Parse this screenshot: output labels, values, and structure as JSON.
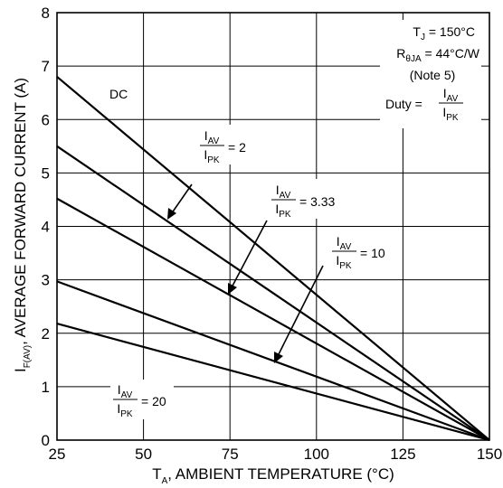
{
  "chart_data": {
    "type": "line",
    "x_range": [
      25,
      150
    ],
    "y_range": [
      0,
      8
    ],
    "x_ticks": [
      "25",
      "50",
      "75",
      "100",
      "125",
      "150"
    ],
    "y_ticks": [
      "0",
      "1",
      "2",
      "3",
      "4",
      "5",
      "6",
      "7",
      "8"
    ],
    "x_tick_values": [
      25,
      50,
      75,
      100,
      125,
      150
    ],
    "y_tick_values": [
      0,
      1,
      2,
      3,
      4,
      5,
      6,
      7,
      8
    ],
    "grid": true,
    "xlabel": {
      "main": "T",
      "sub": "A",
      "rest": ", AMBIENT TEMPERATURE (°C)"
    },
    "ylabel": {
      "main": "I",
      "sub": "F(AV)",
      "rest": ", AVERAGE FORWARD CURRENT (A)"
    },
    "conditions": {
      "tj_main": "T",
      "tj_sub": "J",
      "tj_rest": " = 150°C",
      "r_main": "R",
      "r_sub": "θJA",
      "r_rest": " = 44°C/W",
      "note": "(Note 5)",
      "duty_label": "Duty =",
      "duty_num": "I",
      "duty_num_sub": "AV",
      "duty_den": "I",
      "duty_den_sub": "PK"
    },
    "series": [
      {
        "name": "DC",
        "x": [
          25,
          150
        ],
        "y": [
          6.8,
          0
        ]
      },
      {
        "name": "2",
        "x": [
          25,
          150
        ],
        "y": [
          5.5,
          0
        ]
      },
      {
        "name": "3.33",
        "x": [
          25,
          150
        ],
        "y": [
          4.52,
          0
        ]
      },
      {
        "name": "10",
        "x": [
          25,
          150
        ],
        "y": [
          2.97,
          0
        ]
      },
      {
        "name": "20",
        "x": [
          25,
          150
        ],
        "y": [
          2.18,
          0
        ]
      }
    ],
    "annotations": [
      {
        "num": "I",
        "num_sub": "AV",
        "den": "I",
        "den_sub": "PK",
        "value": "= 2"
      },
      {
        "num": "I",
        "num_sub": "AV",
        "den": "I",
        "den_sub": "PK",
        "value": "= 3.33"
      },
      {
        "num": "I",
        "num_sub": "AV",
        "den": "I",
        "den_sub": "PK",
        "value": "= 10"
      },
      {
        "num": "I",
        "num_sub": "AV",
        "den": "I",
        "den_sub": "PK",
        "value": "= 20"
      }
    ]
  }
}
